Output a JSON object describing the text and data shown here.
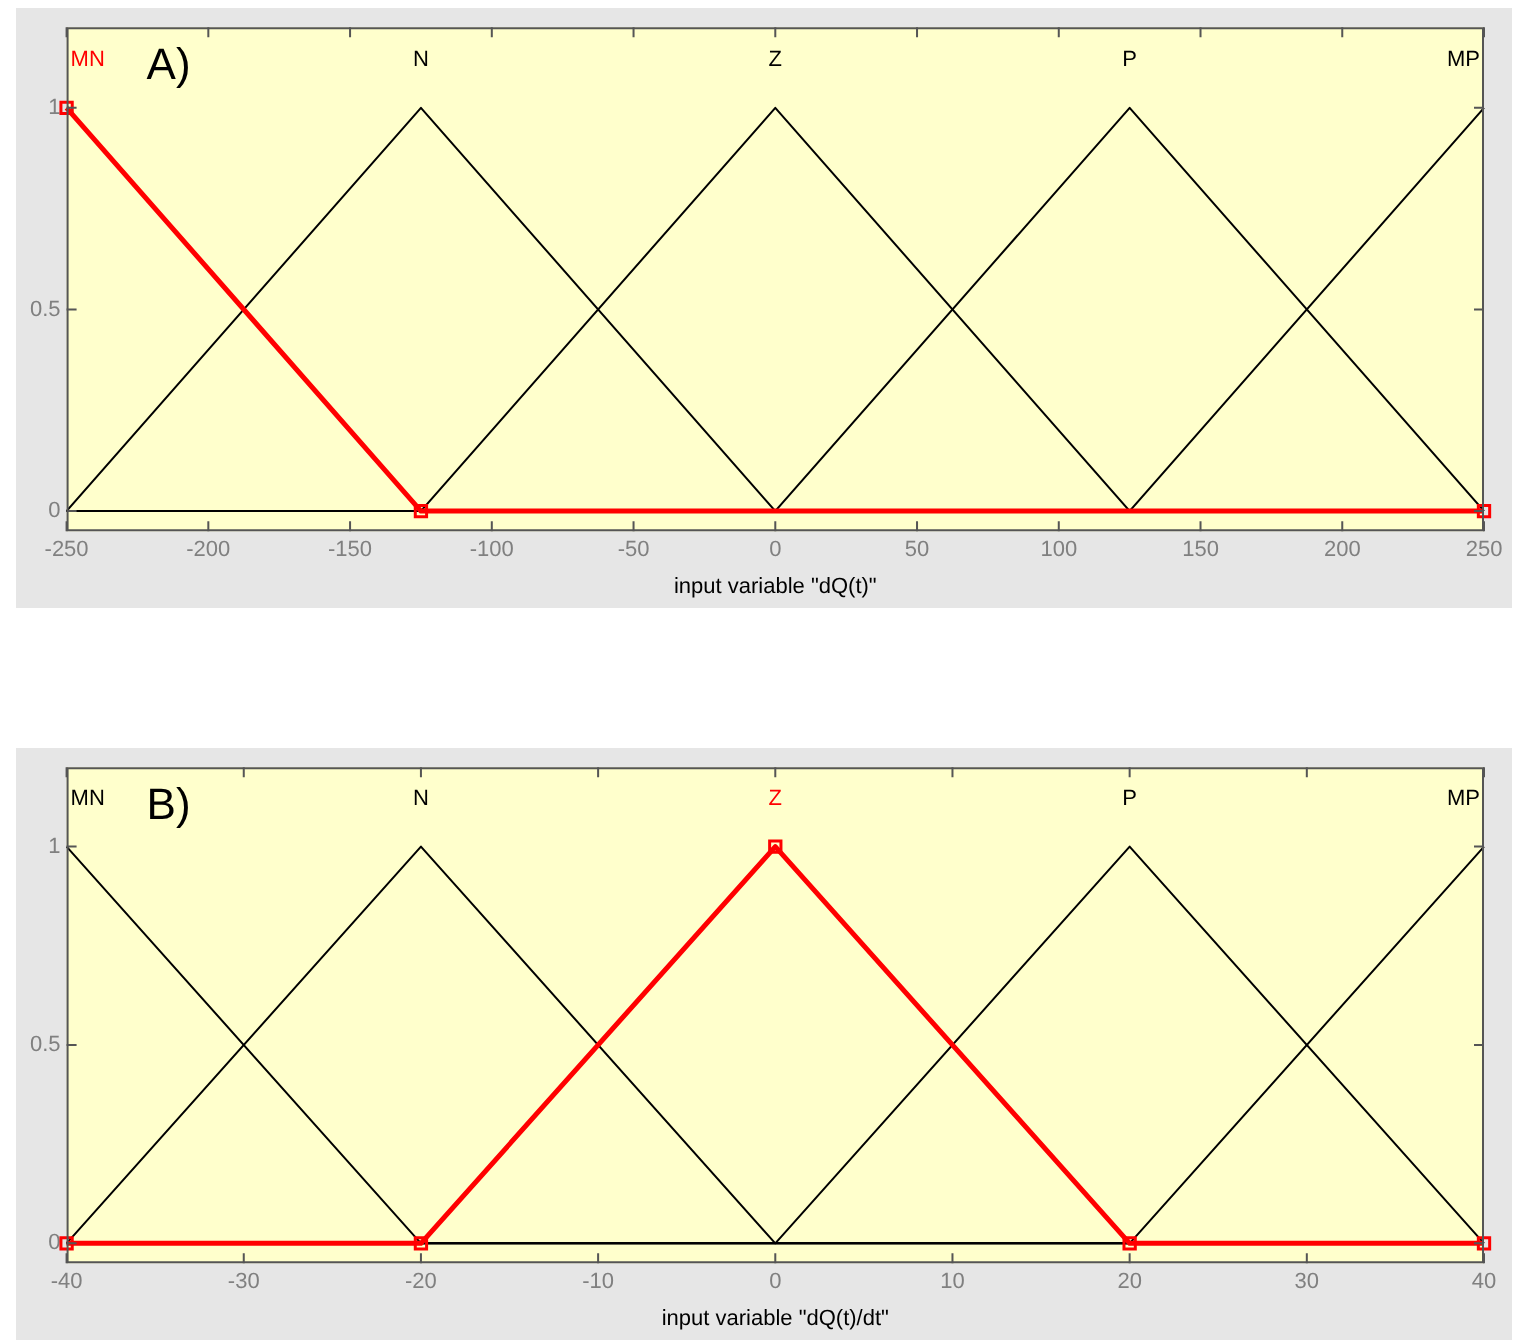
{
  "chart_data": [
    {
      "type": "line",
      "annotations": [
        "A)"
      ],
      "xlabel": "input variable \"dQ(t)\"",
      "xlim": [
        -250,
        250
      ],
      "xticks": [
        -250,
        -200,
        -150,
        -100,
        -50,
        0,
        50,
        100,
        150,
        200,
        250
      ],
      "ylim": [
        -0.05,
        1.2
      ],
      "yticks": [
        0,
        0.5,
        1
      ],
      "grid": false,
      "legend": false,
      "marker": "none",
      "series": [
        {
          "name": "MN",
          "color": "#ff0000",
          "marker": "square",
          "x": [
            -250,
            -125,
            250
          ],
          "values": [
            1,
            0,
            0
          ]
        },
        {
          "name": "N",
          "color": "#000000",
          "x": [
            -250,
            -125,
            0,
            250
          ],
          "values": [
            0,
            1,
            0,
            0
          ]
        },
        {
          "name": "Z",
          "color": "#000000",
          "x": [
            -250,
            -125,
            0,
            125,
            250
          ],
          "values": [
            0,
            0,
            1,
            0,
            0
          ]
        },
        {
          "name": "P",
          "color": "#000000",
          "x": [
            -250,
            0,
            125,
            250
          ],
          "values": [
            0,
            0,
            1,
            0
          ]
        },
        {
          "name": "MP",
          "color": "#000000",
          "x": [
            -250,
            125,
            250
          ],
          "values": [
            0,
            0,
            1
          ]
        }
      ]
    },
    {
      "type": "line",
      "annotations": [
        "B)"
      ],
      "xlabel": "input variable \"dQ(t)/dt\"",
      "xlim": [
        -40,
        40
      ],
      "xticks": [
        -40,
        -30,
        -20,
        -10,
        0,
        10,
        20,
        30,
        40
      ],
      "ylim": [
        -0.05,
        1.2
      ],
      "yticks": [
        0,
        0.5,
        1
      ],
      "grid": false,
      "legend": false,
      "marker": "none",
      "series": [
        {
          "name": "MN",
          "color": "#000000",
          "x": [
            -40,
            -20,
            40
          ],
          "values": [
            1,
            0,
            0
          ]
        },
        {
          "name": "N",
          "color": "#000000",
          "x": [
            -40,
            -20,
            0,
            40
          ],
          "values": [
            0,
            1,
            0,
            0
          ]
        },
        {
          "name": "Z",
          "color": "#ff0000",
          "marker": "square",
          "x": [
            -40,
            -20,
            0,
            20,
            40
          ],
          "values": [
            0,
            0,
            1,
            0,
            0
          ]
        },
        {
          "name": "P",
          "color": "#000000",
          "x": [
            -40,
            0,
            20,
            40
          ],
          "values": [
            0,
            0,
            1,
            0
          ]
        },
        {
          "name": "MP",
          "color": "#000000",
          "x": [
            -40,
            20,
            40
          ],
          "values": [
            0,
            0,
            1
          ]
        }
      ]
    }
  ]
}
